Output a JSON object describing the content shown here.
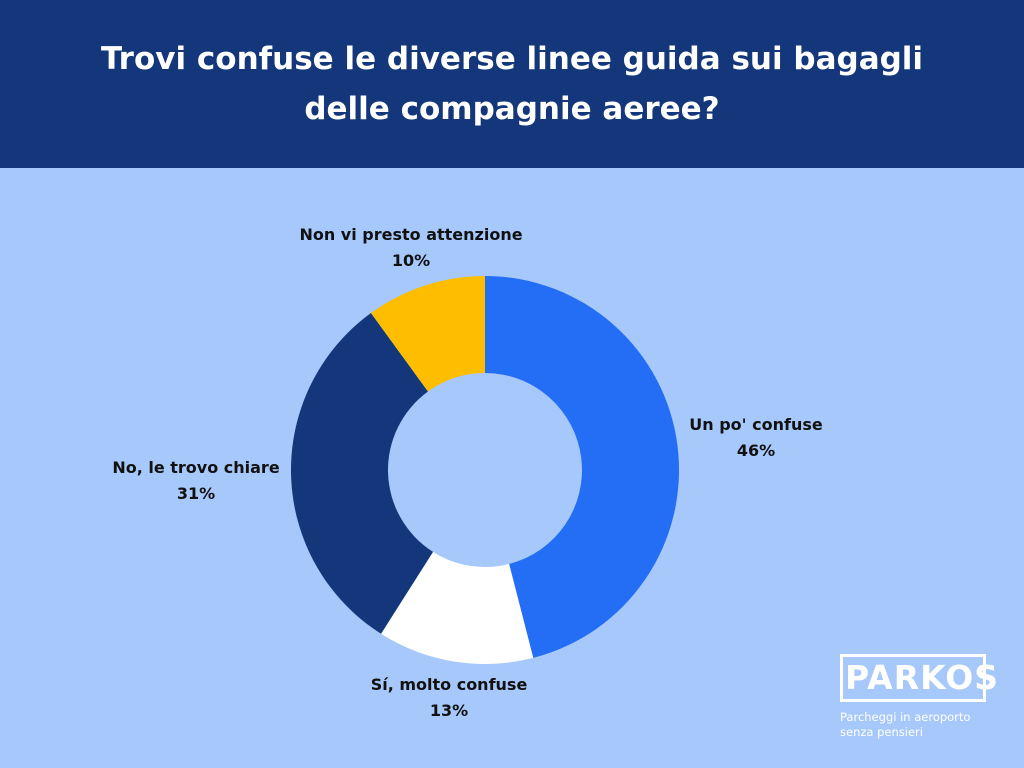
{
  "header": {
    "title_line1": "Trovi confuse le diverse linee guida sui bagagli",
    "title_line2": "delle compagnie aeree?"
  },
  "chart_data": {
    "type": "pie",
    "donut": true,
    "title": "Trovi confuse le diverse linee guida sui bagagli delle compagnie aeree?",
    "slices": [
      {
        "label": "Un po' confuse",
        "value": 46,
        "value_label": "46%",
        "color": "#246ef5"
      },
      {
        "label": "Sí, molto confuse",
        "value": 13,
        "value_label": "13%",
        "color": "#ffffff"
      },
      {
        "label": "No, le trovo chiare",
        "value": 31,
        "value_label": "31%",
        "color": "#13377a"
      },
      {
        "label": "Non vi presto attenzione",
        "value": 10,
        "value_label": "10%",
        "color": "#ffbd00"
      }
    ],
    "start_angle": "top",
    "direction": "clockwise"
  },
  "logo": {
    "brand": "PARKOS",
    "tagline_line1": "Parcheggi in aeroporto",
    "tagline_line2": "senza pensieri"
  },
  "colors": {
    "background": "#a6c8fb",
    "header_bg": "#13377a"
  }
}
